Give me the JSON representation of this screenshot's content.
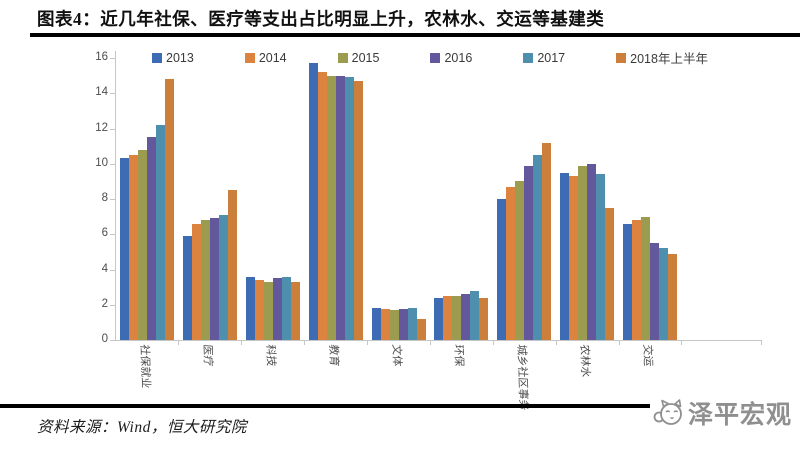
{
  "header": {
    "title": "图表4：近几年社保、医疗等支出占比明显上升，农林水、交运等基建类"
  },
  "footer": {
    "source": "资料来源：Wind，恒大研究院",
    "brand": "泽平宏观"
  },
  "icons": {
    "mascot": "cat-mascot-icon"
  },
  "colors": {
    "title_text": "#101010",
    "divider": "#000000",
    "axis_line": "#c6c6c6",
    "tick_text": "#4d4d4d",
    "brand_text": "#8f8f8f"
  },
  "chart_data": {
    "type": "bar",
    "title": "",
    "xlabel": "",
    "ylabel": "",
    "ylim": [
      0,
      16
    ],
    "ytick_step": 2,
    "grid": false,
    "legend_position": "top",
    "categories": [
      "社保就业",
      "医疗",
      "科技",
      "教育",
      "文体",
      "环保",
      "城乡社区事务",
      "农林水",
      "交运"
    ],
    "series": [
      {
        "name": "2013",
        "color": "#3d6cb4",
        "values": [
          10.3,
          5.9,
          3.6,
          15.7,
          1.8,
          2.4,
          8.0,
          9.5,
          6.6
        ]
      },
      {
        "name": "2014",
        "color": "#dd8340",
        "values": [
          10.5,
          6.6,
          3.4,
          15.2,
          1.75,
          2.5,
          8.7,
          9.3,
          6.8
        ]
      },
      {
        "name": "2015",
        "color": "#9c9c50",
        "values": [
          10.8,
          6.8,
          3.3,
          15.0,
          1.7,
          2.5,
          9.0,
          9.9,
          7.0
        ]
      },
      {
        "name": "2016",
        "color": "#63589b",
        "values": [
          11.5,
          6.9,
          3.5,
          15.0,
          1.75,
          2.6,
          9.9,
          10.0,
          5.5
        ]
      },
      {
        "name": "2017",
        "color": "#4d8fac",
        "values": [
          12.2,
          7.1,
          3.6,
          14.9,
          1.8,
          2.8,
          10.5,
          9.4,
          5.2
        ]
      },
      {
        "name": "2018年上半年",
        "color": "#cc7f3b",
        "values": [
          14.8,
          8.5,
          3.3,
          14.7,
          1.2,
          2.4,
          11.2,
          7.5,
          4.9
        ]
      }
    ]
  }
}
